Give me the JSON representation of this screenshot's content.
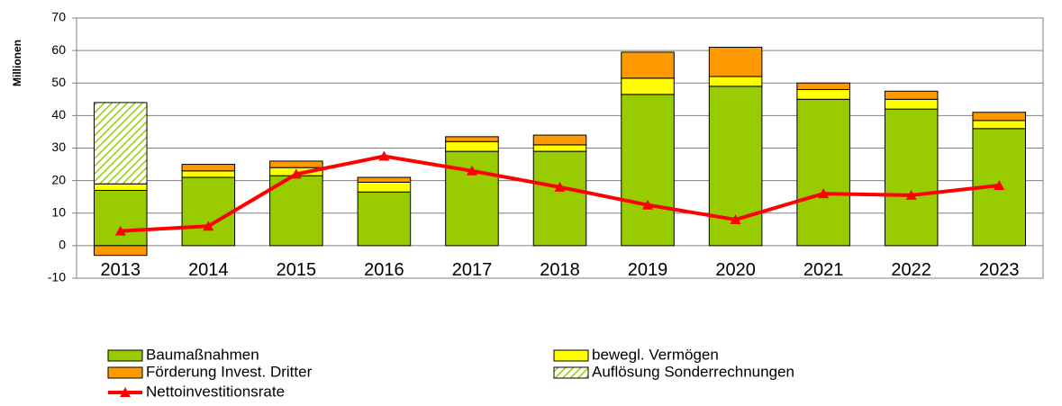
{
  "chart_data": {
    "type": "bar",
    "stacked": true,
    "y_label": "Millionen",
    "categories": [
      "2013",
      "2014",
      "2015",
      "2016",
      "2017",
      "2018",
      "2019",
      "2020",
      "2021",
      "2022",
      "2023"
    ],
    "series": [
      {
        "name": "Baumaßnahmen",
        "color": "#99cc00",
        "values": [
          17,
          21,
          21.5,
          16.5,
          29,
          29,
          46.5,
          49,
          45,
          42,
          36
        ]
      },
      {
        "name": "bewegl. Vermögen",
        "color": "#ffff00",
        "values": [
          2,
          2,
          2.5,
          3,
          3,
          2,
          5,
          3,
          3,
          3,
          2.5
        ]
      },
      {
        "name": "Förderung Invest. Dritter",
        "color": "#ff9900",
        "values": [
          -3,
          2,
          2,
          1.5,
          1.5,
          3,
          8,
          9,
          2,
          2.5,
          2.5
        ]
      },
      {
        "name": "Auflösung Sonderrechnungen",
        "color": "#99cc00",
        "hatch": true,
        "values": [
          25,
          null,
          null,
          null,
          null,
          null,
          null,
          null,
          null,
          null,
          null
        ]
      },
      {
        "name": "Nettoinvestitionsrate",
        "color": "#ff0000",
        "type": "line",
        "marker": "triangle",
        "values": [
          4.5,
          6,
          22,
          27.5,
          23,
          18,
          12.5,
          8,
          16,
          15.5,
          18.5
        ]
      }
    ],
    "ylim": [
      -10,
      70
    ],
    "yticks": [
      -10,
      0,
      10,
      20,
      30,
      40,
      50,
      60,
      70
    ],
    "grid": true,
    "legend": "bottom"
  }
}
